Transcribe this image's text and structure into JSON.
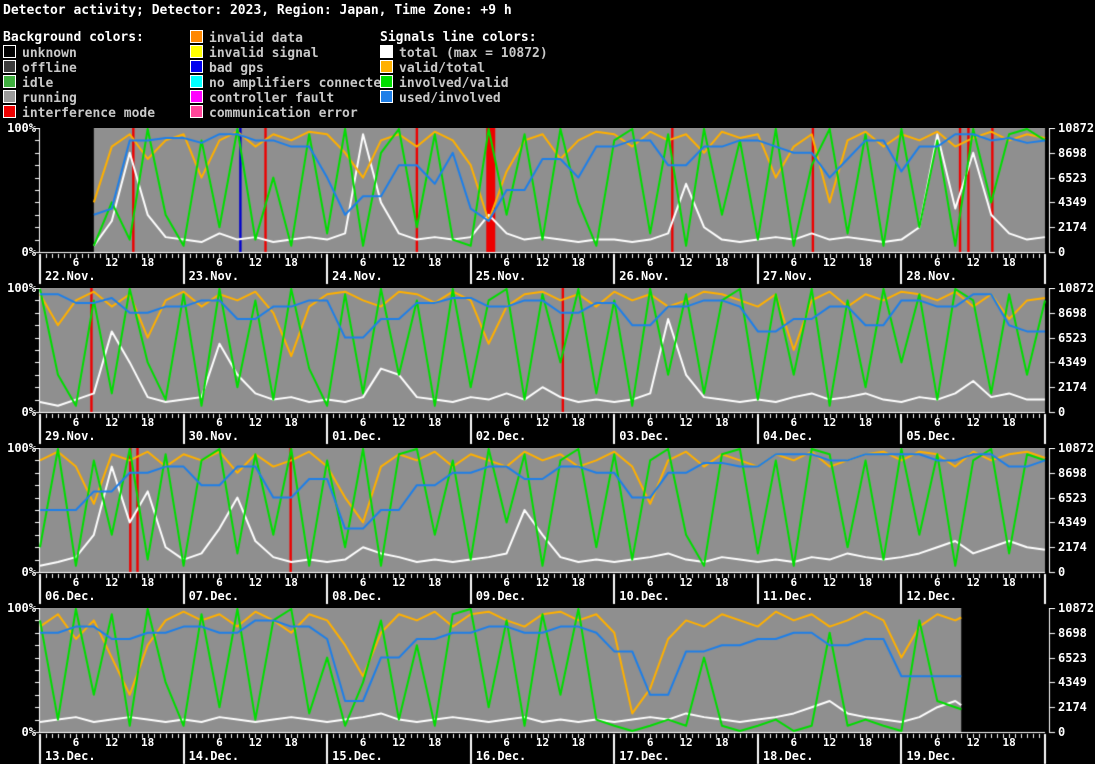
{
  "title": "Detector activity; Detector: 2023, Region: Japan, Time Zone: +9 h",
  "colors": {
    "page_bg": "#000000",
    "plot_bg": "#8f8f8f",
    "axis": "#ffffff",
    "heading_text": "#ffffff",
    "legend_text": "#c8c8c8",
    "series": {
      "total": "#ffffff",
      "valid_total": "#ffb000",
      "involved_valid": "#00dd00",
      "used_involved": "#1e7fe8"
    },
    "stripes": {
      "interference": "#ee0000",
      "bad_gps": "#0000cc"
    }
  },
  "legend": {
    "background_colors": {
      "heading": "Background colors:",
      "items": [
        {
          "label": "unknown",
          "color": "#000000"
        },
        {
          "label": "offline",
          "color": "#3c3c3c"
        },
        {
          "label": "idle",
          "color": "#3faf3f"
        },
        {
          "label": "running",
          "color": "#9a9a9a"
        },
        {
          "label": "interference mode",
          "color": "#ee0000"
        }
      ]
    },
    "background_colors_more": {
      "items": [
        {
          "label": "invalid data",
          "color": "#ff8800"
        },
        {
          "label": "invalid signal",
          "color": "#ffff00"
        },
        {
          "label": "bad gps",
          "color": "#0000ee"
        },
        {
          "label": "no amplifiers connected",
          "color": "#00ffff"
        },
        {
          "label": "controller fault",
          "color": "#ff00ff"
        },
        {
          "label": "communication error",
          "color": "#ff4499"
        }
      ]
    },
    "signal_lines": {
      "heading": "Signals line colors:",
      "items": [
        {
          "label": "total (max = 10872)",
          "key": "total",
          "color": "#ffffff"
        },
        {
          "label": "valid/total",
          "key": "valid_total",
          "color": "#ffb000"
        },
        {
          "label": "involved/valid",
          "key": "involved_valid",
          "color": "#00dd00"
        },
        {
          "label": "used/involved",
          "key": "used_involved",
          "color": "#1e7fe8"
        }
      ]
    }
  },
  "axes": {
    "y_left_top": "100%",
    "y_left_bottom": "0%",
    "hour_tick_labels": [
      "6",
      "12",
      "18"
    ],
    "right_tick_labels": [
      "10872",
      "8698",
      "6523",
      "4349",
      "2174",
      "0"
    ],
    "right_axis_max": 10872,
    "hours_per_day": 24,
    "days_per_row": 7
  },
  "chart_data": [
    {
      "type": "line",
      "row": 1,
      "dates": [
        "22.Nov.",
        "23.Nov.",
        "24.Nov.",
        "25.Nov.",
        "26.Nov.",
        "27.Nov.",
        "28.Nov."
      ],
      "ylim_percent": [
        0,
        100
      ],
      "sample_step_hours": 3,
      "data_start_hour": 9,
      "data_end_hour": 168,
      "background_state": "running",
      "stripes": [
        [
          15.4,
          15.8,
          "interference"
        ],
        [
          33.3,
          33.7,
          "bad_gps"
        ],
        [
          37.5,
          37.9,
          "interference"
        ],
        [
          62.8,
          63.2,
          "interference"
        ],
        [
          74.6,
          76.1,
          "interference"
        ],
        [
          105.5,
          105.9,
          "interference"
        ],
        [
          129.0,
          129.4,
          "interference"
        ],
        [
          153.6,
          154.0,
          "interference"
        ],
        [
          155.0,
          155.4,
          "interference"
        ],
        [
          159.0,
          159.4,
          "interference"
        ]
      ],
      "series": {
        "total": [
          0,
          0,
          0,
          5,
          25,
          80,
          30,
          12,
          10,
          8,
          15,
          10,
          12,
          8,
          10,
          12,
          10,
          15,
          95,
          40,
          15,
          10,
          12,
          10,
          12,
          30,
          15,
          10,
          12,
          10,
          8,
          10,
          10,
          8,
          10,
          15,
          55,
          20,
          10,
          8,
          10,
          12,
          10,
          15,
          10,
          12,
          10,
          8,
          10,
          20,
          95,
          35,
          80,
          30,
          15,
          10,
          12
        ],
        "valid_total": [
          0,
          0,
          0,
          40,
          85,
          95,
          75,
          90,
          95,
          60,
          90,
          97,
          85,
          95,
          90,
          97,
          95,
          80,
          60,
          90,
          95,
          85,
          97,
          90,
          70,
          25,
          65,
          90,
          95,
          75,
          90,
          97,
          95,
          85,
          97,
          90,
          95,
          80,
          97,
          92,
          95,
          60,
          85,
          95,
          40,
          90,
          97,
          85,
          95,
          90,
          97,
          85,
          92,
          97,
          90,
          95,
          92
        ],
        "involved_valid": [
          0,
          0,
          0,
          5,
          40,
          10,
          100,
          30,
          5,
          90,
          20,
          100,
          10,
          60,
          5,
          95,
          15,
          100,
          5,
          80,
          100,
          20,
          95,
          10,
          5,
          100,
          30,
          95,
          10,
          100,
          40,
          5,
          90,
          100,
          15,
          95,
          5,
          100,
          30,
          90,
          10,
          100,
          5,
          70,
          100,
          15,
          95,
          5,
          100,
          20,
          90,
          5,
          100,
          40,
          95,
          100,
          90
        ],
        "used_involved": [
          0,
          0,
          0,
          30,
          35,
          90,
          90,
          92,
          92,
          88,
          95,
          95,
          90,
          90,
          85,
          85,
          60,
          30,
          45,
          45,
          70,
          70,
          55,
          80,
          35,
          25,
          50,
          50,
          75,
          75,
          60,
          85,
          85,
          90,
          90,
          70,
          70,
          85,
          85,
          90,
          90,
          85,
          80,
          80,
          60,
          75,
          90,
          90,
          65,
          85,
          85,
          95,
          95,
          90,
          92,
          88,
          90
        ]
      }
    },
    {
      "type": "line",
      "row": 2,
      "dates": [
        "29.Nov.",
        "30.Nov.",
        "01.Dec.",
        "02.Dec.",
        "03.Dec.",
        "04.Dec.",
        "05.Dec."
      ],
      "ylim_percent": [
        0,
        100
      ],
      "sample_step_hours": 3,
      "data_start_hour": 0,
      "data_end_hour": 168,
      "background_state": "running",
      "stripes": [
        [
          8.4,
          8.8,
          "interference"
        ],
        [
          87.2,
          87.6,
          "interference"
        ]
      ],
      "series": {
        "total": [
          8,
          5,
          10,
          15,
          65,
          40,
          12,
          8,
          10,
          12,
          55,
          30,
          15,
          10,
          12,
          8,
          10,
          8,
          12,
          35,
          30,
          12,
          10,
          8,
          12,
          10,
          15,
          10,
          20,
          12,
          8,
          10,
          8,
          10,
          15,
          75,
          30,
          12,
          10,
          8,
          10,
          8,
          12,
          15,
          10,
          12,
          15,
          10,
          8,
          12,
          10,
          15,
          25,
          12,
          15,
          10,
          10
        ],
        "valid_total": [
          95,
          70,
          90,
          97,
          85,
          95,
          60,
          90,
          97,
          85,
          95,
          90,
          97,
          80,
          45,
          85,
          95,
          97,
          90,
          85,
          97,
          95,
          88,
          97,
          90,
          55,
          85,
          95,
          97,
          90,
          95,
          85,
          97,
          90,
          95,
          85,
          90,
          97,
          95,
          90,
          85,
          95,
          50,
          90,
          97,
          85,
          95,
          90,
          97,
          95,
          90,
          97,
          85,
          95,
          75,
          90,
          92
        ],
        "involved_valid": [
          100,
          30,
          5,
          90,
          15,
          100,
          40,
          10,
          95,
          5,
          100,
          20,
          90,
          10,
          100,
          35,
          5,
          95,
          15,
          100,
          30,
          90,
          5,
          100,
          20,
          90,
          100,
          10,
          95,
          40,
          100,
          15,
          90,
          5,
          100,
          30,
          95,
          15,
          90,
          100,
          10,
          95,
          30,
          100,
          5,
          90,
          20,
          100,
          40,
          95,
          10,
          100,
          90,
          15,
          95,
          30,
          90
        ],
        "used_involved": [
          95,
          95,
          88,
          88,
          92,
          80,
          80,
          85,
          85,
          90,
          90,
          75,
          75,
          85,
          85,
          90,
          90,
          60,
          60,
          75,
          75,
          88,
          88,
          92,
          92,
          85,
          85,
          90,
          90,
          80,
          80,
          88,
          88,
          70,
          70,
          85,
          85,
          90,
          90,
          85,
          65,
          65,
          75,
          75,
          85,
          85,
          70,
          70,
          90,
          90,
          85,
          85,
          95,
          95,
          70,
          65,
          65
        ]
      }
    },
    {
      "type": "line",
      "row": 3,
      "dates": [
        "06.Dec.",
        "07.Dec.",
        "08.Dec.",
        "09.Dec.",
        "10.Dec.",
        "11.Dec.",
        "12.Dec."
      ],
      "ylim_percent": [
        0,
        100
      ],
      "sample_step_hours": 3,
      "data_start_hour": 0,
      "data_end_hour": 168,
      "background_state": "running",
      "stripes": [
        [
          14.9,
          15.3,
          "interference"
        ],
        [
          16.1,
          16.5,
          "interference"
        ],
        [
          41.7,
          42.1,
          "interference"
        ]
      ],
      "series": {
        "total": [
          5,
          8,
          12,
          30,
          85,
          40,
          65,
          20,
          10,
          15,
          35,
          60,
          25,
          12,
          8,
          10,
          8,
          10,
          20,
          15,
          12,
          8,
          10,
          8,
          10,
          12,
          15,
          50,
          30,
          12,
          8,
          10,
          8,
          10,
          12,
          15,
          10,
          8,
          12,
          10,
          8,
          10,
          8,
          12,
          10,
          15,
          12,
          10,
          12,
          15,
          20,
          25,
          15,
          20,
          25,
          20,
          18
        ],
        "valid_total": [
          90,
          97,
          85,
          55,
          95,
          90,
          97,
          85,
          95,
          90,
          97,
          80,
          95,
          85,
          90,
          97,
          85,
          60,
          40,
          85,
          95,
          90,
          97,
          85,
          95,
          90,
          85,
          97,
          90,
          95,
          85,
          90,
          97,
          85,
          55,
          90,
          97,
          85,
          95,
          90,
          85,
          95,
          90,
          97,
          85,
          90,
          95,
          97,
          90,
          97,
          95,
          85,
          97,
          90,
          95,
          97,
          92
        ],
        "involved_valid": [
          20,
          100,
          5,
          90,
          30,
          100,
          10,
          95,
          5,
          90,
          100,
          15,
          95,
          30,
          100,
          5,
          90,
          20,
          100,
          5,
          95,
          100,
          30,
          90,
          10,
          100,
          40,
          95,
          5,
          90,
          100,
          20,
          95,
          10,
          90,
          100,
          30,
          5,
          95,
          100,
          15,
          90,
          5,
          100,
          95,
          20,
          90,
          10,
          100,
          30,
          95,
          5,
          90,
          100,
          15,
          95,
          90
        ],
        "used_involved": [
          50,
          50,
          50,
          65,
          65,
          80,
          80,
          85,
          85,
          70,
          70,
          85,
          85,
          60,
          60,
          75,
          75,
          35,
          35,
          50,
          50,
          70,
          70,
          80,
          80,
          85,
          85,
          75,
          75,
          85,
          85,
          80,
          80,
          60,
          60,
          80,
          80,
          88,
          88,
          85,
          85,
          95,
          95,
          95,
          90,
          90,
          95,
          95,
          95,
          95,
          90,
          90,
          95,
          95,
          85,
          85,
          90
        ]
      }
    },
    {
      "type": "line",
      "row": 4,
      "dates": [
        "13.Dec.",
        "14.Dec.",
        "15.Dec.",
        "16.Dec.",
        "17.Dec.",
        "18.Dec.",
        "19.Dec."
      ],
      "ylim_percent": [
        0,
        100
      ],
      "sample_step_hours": 3,
      "data_start_hour": 0,
      "data_end_hour": 154,
      "background_state": "running",
      "stripes": [],
      "series": {
        "total": [
          8,
          10,
          12,
          8,
          10,
          12,
          10,
          8,
          10,
          8,
          12,
          10,
          8,
          10,
          12,
          10,
          8,
          10,
          12,
          15,
          10,
          8,
          10,
          12,
          10,
          8,
          10,
          12,
          8,
          10,
          8,
          10,
          8,
          10,
          12,
          10,
          15,
          12,
          10,
          8,
          10,
          12,
          15,
          20,
          25,
          15,
          12,
          10,
          8,
          12,
          20,
          25,
          15,
          10,
          10,
          10,
          10
        ],
        "valid_total": [
          85,
          95,
          75,
          90,
          60,
          30,
          70,
          90,
          97,
          90,
          95,
          85,
          97,
          90,
          80,
          95,
          90,
          70,
          45,
          80,
          95,
          90,
          97,
          85,
          95,
          97,
          90,
          85,
          95,
          97,
          90,
          95,
          80,
          15,
          35,
          75,
          90,
          85,
          95,
          90,
          85,
          97,
          90,
          95,
          85,
          90,
          97,
          90,
          60,
          85,
          95,
          90,
          97,
          92,
          92,
          92,
          92
        ],
        "involved_valid": [
          90,
          10,
          100,
          30,
          95,
          5,
          100,
          40,
          5,
          95,
          20,
          100,
          10,
          90,
          100,
          15,
          60,
          5,
          40,
          90,
          10,
          70,
          5,
          95,
          100,
          20,
          90,
          5,
          95,
          30,
          100,
          10,
          5,
          0,
          5,
          10,
          5,
          60,
          5,
          0,
          5,
          10,
          0,
          5,
          80,
          5,
          10,
          5,
          0,
          90,
          25,
          20,
          15,
          10,
          10,
          10,
          10
        ],
        "used_involved": [
          80,
          80,
          85,
          85,
          75,
          75,
          80,
          80,
          85,
          85,
          80,
          80,
          90,
          90,
          85,
          85,
          75,
          25,
          25,
          60,
          60,
          75,
          75,
          80,
          80,
          85,
          85,
          80,
          80,
          85,
          85,
          80,
          65,
          65,
          30,
          30,
          65,
          65,
          70,
          70,
          75,
          75,
          80,
          80,
          70,
          70,
          75,
          75,
          45,
          45,
          45,
          45,
          45,
          45,
          45,
          45,
          45
        ]
      }
    }
  ]
}
